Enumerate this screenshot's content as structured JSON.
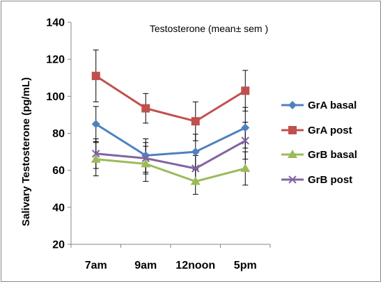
{
  "chart_data": {
    "type": "line",
    "title": "Testosterone (mean± sem )",
    "ylabel": "Salivary Testosterone (pg/mL)",
    "xlabel": "",
    "categories": [
      "7am",
      "9am",
      "12noon",
      "5pm"
    ],
    "ylim": [
      20,
      140
    ],
    "yticks": [
      20,
      40,
      60,
      80,
      100,
      120,
      140
    ],
    "grid": false,
    "legend_position": "right",
    "series": [
      {
        "name": "GrA basal",
        "values": [
          85,
          68,
          70,
          83
        ],
        "errors": [
          9.5,
          9,
          9.5,
          11
        ],
        "color": "#4F81BD",
        "marker": "diamond"
      },
      {
        "name": "GrA post",
        "values": [
          111,
          93.5,
          86.5,
          103
        ],
        "errors": [
          14,
          8,
          10.5,
          11
        ],
        "color": "#C0504D",
        "marker": "square"
      },
      {
        "name": "GrB basal",
        "values": [
          66,
          63.5,
          54,
          61
        ],
        "errors": [
          9,
          9.5,
          7,
          9
        ],
        "color": "#9BBB59",
        "marker": "triangle"
      },
      {
        "name": "GrB post",
        "values": [
          69,
          66.5,
          61,
          76
        ],
        "errors": [
          8,
          8.5,
          7,
          10
        ],
        "color": "#8064A2",
        "marker": "x"
      }
    ]
  }
}
